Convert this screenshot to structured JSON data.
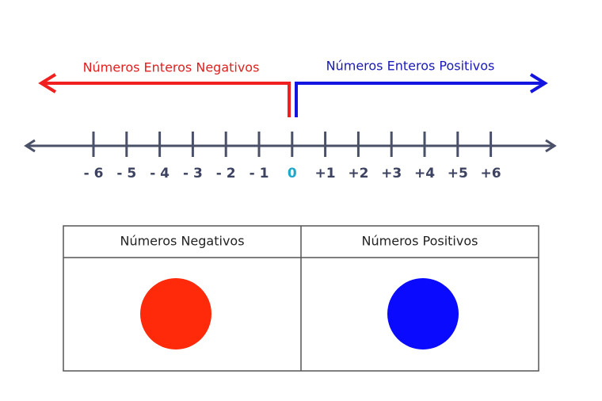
{
  "arrows": {
    "negative": {
      "label": "Números Enteros Negativos"
    },
    "positive": {
      "label": "Números Enteros Positivos"
    }
  },
  "number_line": {
    "labels": [
      "- 6",
      "- 5",
      "- 4",
      "- 3",
      "- 2",
      "- 1",
      "0",
      "+1",
      "+2",
      "+3",
      "+4",
      "+5",
      "+6"
    ]
  },
  "table": {
    "headers": [
      "Números Negativos",
      "Números Positivos"
    ]
  }
}
